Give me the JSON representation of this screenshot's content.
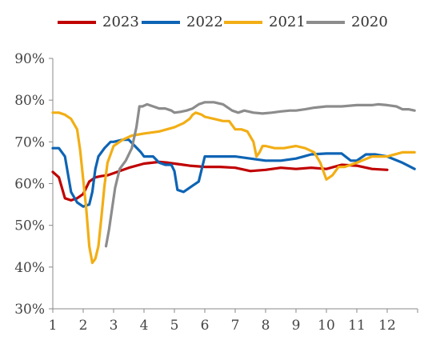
{
  "chart_data": {
    "type": "line",
    "title": "",
    "xlabel": "",
    "ylabel": "",
    "xlim": [
      1,
      13
    ],
    "ylim": [
      30,
      90
    ],
    "x_ticks": [
      "1",
      "2",
      "3",
      "4",
      "5",
      "6",
      "7",
      "8",
      "9",
      "10",
      "11",
      "12"
    ],
    "y_ticks": [
      "30%",
      "40%",
      "50%",
      "60%",
      "70%",
      "80%",
      "90%"
    ],
    "y_tick_values": [
      30,
      40,
      50,
      60,
      70,
      80,
      90
    ],
    "grid": false,
    "legend_position": "top",
    "series": [
      {
        "name": "2023",
        "color": "#C00000",
        "x": [
          1.0,
          1.2,
          1.4,
          1.6,
          1.8,
          2.0,
          2.2,
          2.4,
          2.6,
          2.8,
          3.0,
          3.5,
          4.0,
          4.5,
          4.8,
          5.0,
          5.2,
          5.5,
          6.0,
          6.5,
          7.0,
          7.5,
          8.0,
          8.5,
          9.0,
          9.5,
          10.0,
          10.5,
          11.0,
          11.5,
          12.0
        ],
        "y": [
          62.8,
          61.5,
          56.5,
          56.0,
          56.5,
          57.5,
          60.5,
          61.5,
          61.8,
          62.0,
          62.5,
          63.8,
          64.8,
          65.2,
          65.0,
          64.8,
          64.6,
          64.3,
          64.0,
          64.0,
          63.8,
          63.0,
          63.3,
          63.8,
          63.5,
          63.8,
          63.5,
          64.5,
          64.3,
          63.5,
          63.3
        ]
      },
      {
        "name": "2022",
        "color": "#0E64B4",
        "x": [
          1.0,
          1.2,
          1.4,
          1.6,
          1.8,
          2.0,
          2.2,
          2.3,
          2.4,
          2.5,
          2.7,
          2.9,
          3.0,
          3.3,
          3.5,
          3.7,
          3.9,
          4.0,
          4.3,
          4.5,
          4.7,
          4.9,
          5.0,
          5.1,
          5.3,
          5.6,
          5.8,
          6.0,
          6.3,
          6.6,
          7.0,
          7.5,
          8.0,
          8.5,
          9.0,
          9.5,
          10.0,
          10.5,
          10.8,
          11.0,
          11.3,
          11.6,
          12.0,
          12.5,
          12.9
        ],
        "y": [
          68.5,
          68.5,
          66.5,
          58.0,
          55.5,
          54.5,
          55.0,
          58.0,
          63.5,
          66.5,
          68.5,
          70.0,
          70.0,
          70.5,
          70.5,
          69.0,
          67.5,
          66.5,
          66.5,
          65.0,
          64.5,
          64.5,
          63.0,
          58.5,
          58.0,
          59.5,
          60.5,
          66.5,
          66.5,
          66.5,
          66.5,
          66.0,
          65.5,
          65.5,
          66.0,
          67.0,
          67.2,
          67.2,
          65.5,
          65.5,
          67.0,
          67.0,
          66.5,
          65.0,
          63.5
        ]
      },
      {
        "name": "2021",
        "color": "#F2AE15",
        "x": [
          1.0,
          1.2,
          1.4,
          1.6,
          1.8,
          1.9,
          2.0,
          2.1,
          2.2,
          2.3,
          2.4,
          2.5,
          2.6,
          2.7,
          2.8,
          3.0,
          3.3,
          3.6,
          4.0,
          4.5,
          5.0,
          5.3,
          5.5,
          5.6,
          5.7,
          5.9,
          6.0,
          6.3,
          6.6,
          6.8,
          7.0,
          7.2,
          7.4,
          7.6,
          7.7,
          7.8,
          7.9,
          8.0,
          8.3,
          8.6,
          9.0,
          9.3,
          9.6,
          9.8,
          10.0,
          10.2,
          10.4,
          10.6,
          10.8,
          11.0,
          11.5,
          12.0,
          12.5,
          12.9
        ],
        "y": [
          77.0,
          77.0,
          76.5,
          75.5,
          73.0,
          68.0,
          61.0,
          54.0,
          45.0,
          41.0,
          42.0,
          45.0,
          52.0,
          59.5,
          65.0,
          69.0,
          70.5,
          71.5,
          72.0,
          72.5,
          73.5,
          74.5,
          75.5,
          76.5,
          77.0,
          76.5,
          76.0,
          75.5,
          75.0,
          75.0,
          73.0,
          73.0,
          72.5,
          70.0,
          66.5,
          67.5,
          69.0,
          69.0,
          68.5,
          68.5,
          69.0,
          68.5,
          67.5,
          65.0,
          61.0,
          62.0,
          64.0,
          64.0,
          64.5,
          65.0,
          66.5,
          66.5,
          67.5,
          67.5
        ]
      },
      {
        "name": "2020",
        "color": "#8C8C8C",
        "x": [
          2.75,
          2.85,
          2.95,
          3.05,
          3.2,
          3.4,
          3.6,
          3.75,
          3.85,
          3.95,
          4.1,
          4.3,
          4.5,
          4.7,
          4.9,
          5.0,
          5.2,
          5.4,
          5.6,
          5.8,
          6.0,
          6.3,
          6.6,
          6.9,
          7.1,
          7.3,
          7.6,
          7.9,
          8.2,
          8.5,
          8.8,
          9.0,
          9.3,
          9.6,
          10.0,
          10.5,
          11.0,
          11.5,
          11.7,
          12.0,
          12.3,
          12.5,
          12.7,
          12.9
        ],
        "y": [
          45.0,
          49.0,
          54.0,
          59.0,
          63.5,
          65.5,
          68.5,
          73.5,
          78.5,
          78.5,
          79.0,
          78.5,
          78.0,
          78.0,
          77.5,
          77.0,
          77.2,
          77.5,
          78.0,
          79.0,
          79.5,
          79.5,
          79.0,
          77.5,
          77.0,
          77.5,
          77.0,
          76.8,
          77.0,
          77.3,
          77.5,
          77.5,
          77.8,
          78.2,
          78.5,
          78.5,
          78.8,
          78.8,
          79.0,
          78.8,
          78.5,
          77.8,
          77.8,
          77.5
        ]
      }
    ]
  }
}
